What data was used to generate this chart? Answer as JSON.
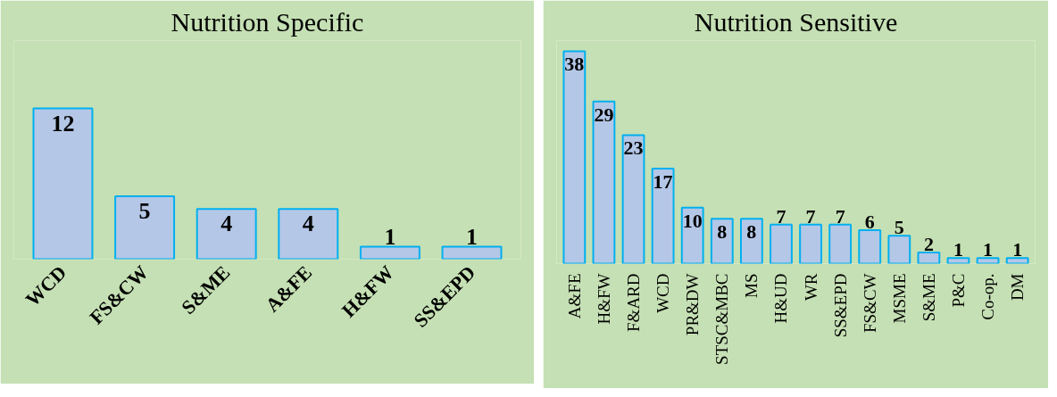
{
  "chart_data": [
    {
      "type": "bar",
      "title": "Nutrition Specific",
      "categories": [
        "WCD",
        "FS&CW",
        "S&ME",
        "A&FE",
        "H&FW",
        "SS&EPD"
      ],
      "values": [
        12,
        5,
        4,
        4,
        1,
        1
      ],
      "color": "#b4c7e7",
      "data_labels": true,
      "grid": false
    },
    {
      "type": "bar",
      "title": "Nutrition Sensitive",
      "categories": [
        "A&FE",
        "H&FW",
        "F&ARD",
        "WCD",
        "PR&DW",
        "STSC&MBC",
        "MS",
        "H&UD",
        "WR",
        "SS&EPD",
        "FS&CW",
        "MSME",
        "S&ME",
        "P&C",
        "Co-op.",
        "DM"
      ],
      "values": [
        38,
        29,
        23,
        17,
        10,
        8,
        8,
        7,
        7,
        7,
        6,
        5,
        2,
        1,
        1,
        1
      ],
      "color": "#b4c7e7",
      "data_labels": true,
      "grid": false
    }
  ]
}
